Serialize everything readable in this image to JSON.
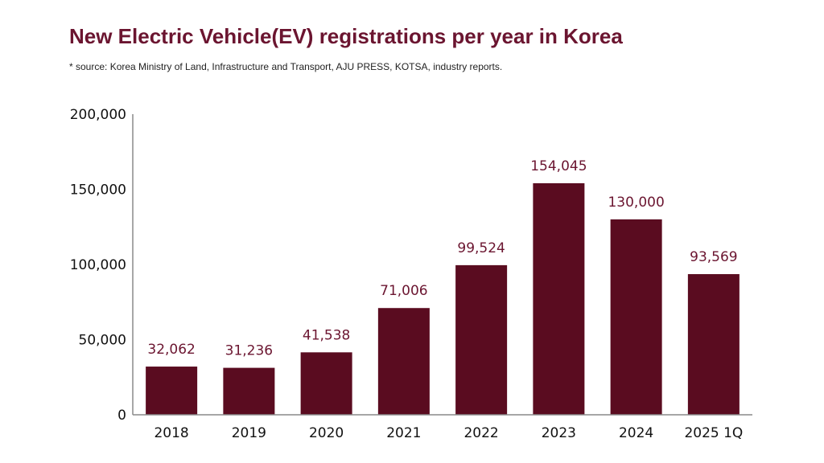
{
  "colors": {
    "bar": "#5a0c20",
    "title": "#6b1530",
    "data_label": "#6b1530",
    "axis": "#8a8a8a"
  },
  "chart_data": {
    "type": "bar",
    "title": "New Electric Vehicle(EV) registrations per year in Korea",
    "subtitle": "* source: Korea Ministry of Land, Infrastructure and Transport, AJU PRESS, KOTSA, industry reports.",
    "categories": [
      "2018",
      "2019",
      "2020",
      "2021",
      "2022",
      "2023",
      "2024",
      "2025 1Q"
    ],
    "values": [
      32062,
      31236,
      41538,
      71006,
      99524,
      154045,
      130000,
      93569
    ],
    "data_labels": [
      "32,062",
      "31,236",
      "41,538",
      "71,006",
      "99,524",
      "154,045",
      "130,000",
      "93,569"
    ],
    "yticks": [
      0,
      50000,
      100000,
      150000,
      200000
    ],
    "ytick_labels": [
      "0",
      "50,000",
      "100,000",
      "150,000",
      "200,000"
    ],
    "ylim": [
      0,
      200000
    ],
    "xlabel": "",
    "ylabel": "",
    "grid": false,
    "legend": "none"
  }
}
